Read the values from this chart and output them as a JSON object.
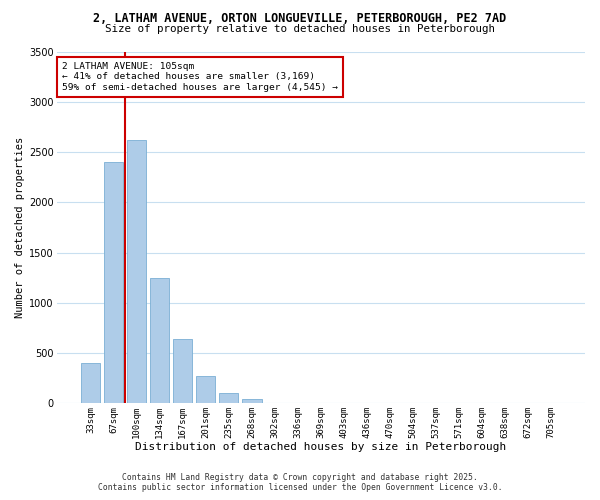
{
  "title_line1": "2, LATHAM AVENUE, ORTON LONGUEVILLE, PETERBOROUGH, PE2 7AD",
  "title_line2": "Size of property relative to detached houses in Peterborough",
  "xlabel": "Distribution of detached houses by size in Peterborough",
  "ylabel": "Number of detached properties",
  "bar_color": "#aecce8",
  "bar_edge_color": "#7aafd4",
  "categories": [
    "33sqm",
    "67sqm",
    "100sqm",
    "134sqm",
    "167sqm",
    "201sqm",
    "235sqm",
    "268sqm",
    "302sqm",
    "336sqm",
    "369sqm",
    "403sqm",
    "436sqm",
    "470sqm",
    "504sqm",
    "537sqm",
    "571sqm",
    "604sqm",
    "638sqm",
    "672sqm",
    "705sqm"
  ],
  "values": [
    400,
    2400,
    2620,
    1250,
    640,
    270,
    105,
    45,
    0,
    0,
    0,
    0,
    0,
    0,
    0,
    0,
    0,
    0,
    0,
    0,
    0
  ],
  "ylim": [
    0,
    3500
  ],
  "yticks": [
    0,
    500,
    1000,
    1500,
    2000,
    2500,
    3000,
    3500
  ],
  "property_line_idx": 2,
  "property_line_color": "#cc0000",
  "annotation_title": "2 LATHAM AVENUE: 105sqm",
  "annotation_line2": "← 41% of detached houses are smaller (3,169)",
  "annotation_line3": "59% of semi-detached houses are larger (4,545) →",
  "annotation_box_color": "#ffffff",
  "annotation_box_edge": "#cc0000",
  "background_color": "#ffffff",
  "grid_color": "#c8dff0",
  "footer_line1": "Contains HM Land Registry data © Crown copyright and database right 2025.",
  "footer_line2": "Contains public sector information licensed under the Open Government Licence v3.0."
}
